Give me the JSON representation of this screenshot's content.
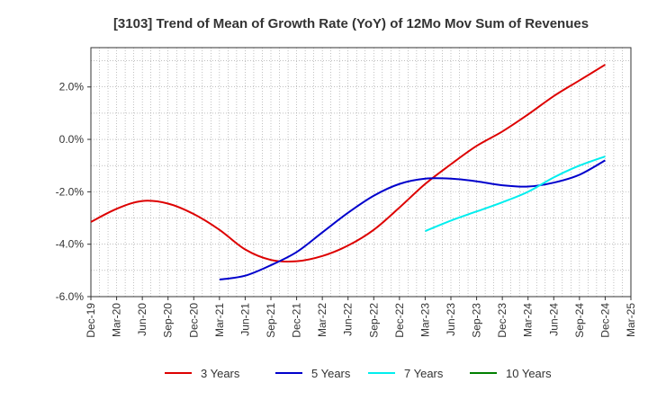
{
  "chart_data": {
    "type": "line",
    "title": "[3103]  Trend of Mean of Growth Rate (YoY) of 12Mo Mov Sum of Revenues",
    "xlabel": "",
    "ylabel": "",
    "ylim": [
      -6.0,
      3.5
    ],
    "y_ticks": [
      2.0,
      0.0,
      -2.0,
      -4.0,
      -6.0
    ],
    "y_tick_labels": [
      "2.0%",
      "0.0%",
      "-2.0%",
      "-4.0%",
      "-6.0%"
    ],
    "x_start": "Dec-19",
    "x_end": "Mar-25",
    "x_tick_labels": [
      "Dec-19",
      "Mar-20",
      "Jun-20",
      "Sep-20",
      "Dec-20",
      "Mar-21",
      "Jun-21",
      "Sep-21",
      "Dec-21",
      "Mar-22",
      "Jun-22",
      "Sep-22",
      "Dec-22",
      "Mar-23",
      "Jun-23",
      "Sep-23",
      "Dec-23",
      "Mar-24",
      "Jun-24",
      "Sep-24",
      "Dec-24",
      "Mar-25"
    ],
    "grid": true,
    "legend_position": "bottom",
    "series": [
      {
        "name": "3 Years",
        "color": "#dd0000",
        "x": [
          "Dec-19",
          "Mar-20",
          "Jun-20",
          "Sep-20",
          "Dec-20",
          "Mar-21",
          "Jun-21",
          "Sep-21",
          "Dec-21",
          "Mar-22",
          "Jun-22",
          "Sep-22",
          "Dec-22",
          "Mar-23",
          "Jun-23",
          "Sep-23",
          "Dec-23",
          "Mar-24",
          "Jun-24",
          "Sep-24",
          "Dec-24"
        ],
        "values": [
          -3.15,
          -2.65,
          -2.35,
          -2.45,
          -2.85,
          -3.45,
          -4.2,
          -4.6,
          -4.65,
          -4.45,
          -4.05,
          -3.45,
          -2.6,
          -1.7,
          -0.95,
          -0.25,
          0.3,
          0.95,
          1.65,
          2.25,
          2.85
        ]
      },
      {
        "name": "5 Years",
        "color": "#0000cc",
        "x": [
          "Mar-21",
          "Jun-21",
          "Sep-21",
          "Dec-21",
          "Mar-22",
          "Jun-22",
          "Sep-22",
          "Dec-22",
          "Mar-23",
          "Jun-23",
          "Sep-23",
          "Dec-23",
          "Mar-24",
          "Jun-24",
          "Sep-24",
          "Dec-24"
        ],
        "values": [
          -5.35,
          -5.2,
          -4.8,
          -4.3,
          -3.55,
          -2.8,
          -2.15,
          -1.7,
          -1.5,
          -1.5,
          -1.6,
          -1.75,
          -1.8,
          -1.65,
          -1.35,
          -0.8
        ]
      },
      {
        "name": "7 Years",
        "color": "#00eeee",
        "x": [
          "Mar-23",
          "Jun-23",
          "Sep-23",
          "Dec-23",
          "Mar-24",
          "Jun-24",
          "Sep-24",
          "Dec-24"
        ],
        "values": [
          -3.5,
          -3.1,
          -2.75,
          -2.4,
          -2.0,
          -1.45,
          -1.0,
          -0.65
        ]
      },
      {
        "name": "10 Years",
        "color": "#008000",
        "x": [],
        "values": []
      }
    ]
  }
}
